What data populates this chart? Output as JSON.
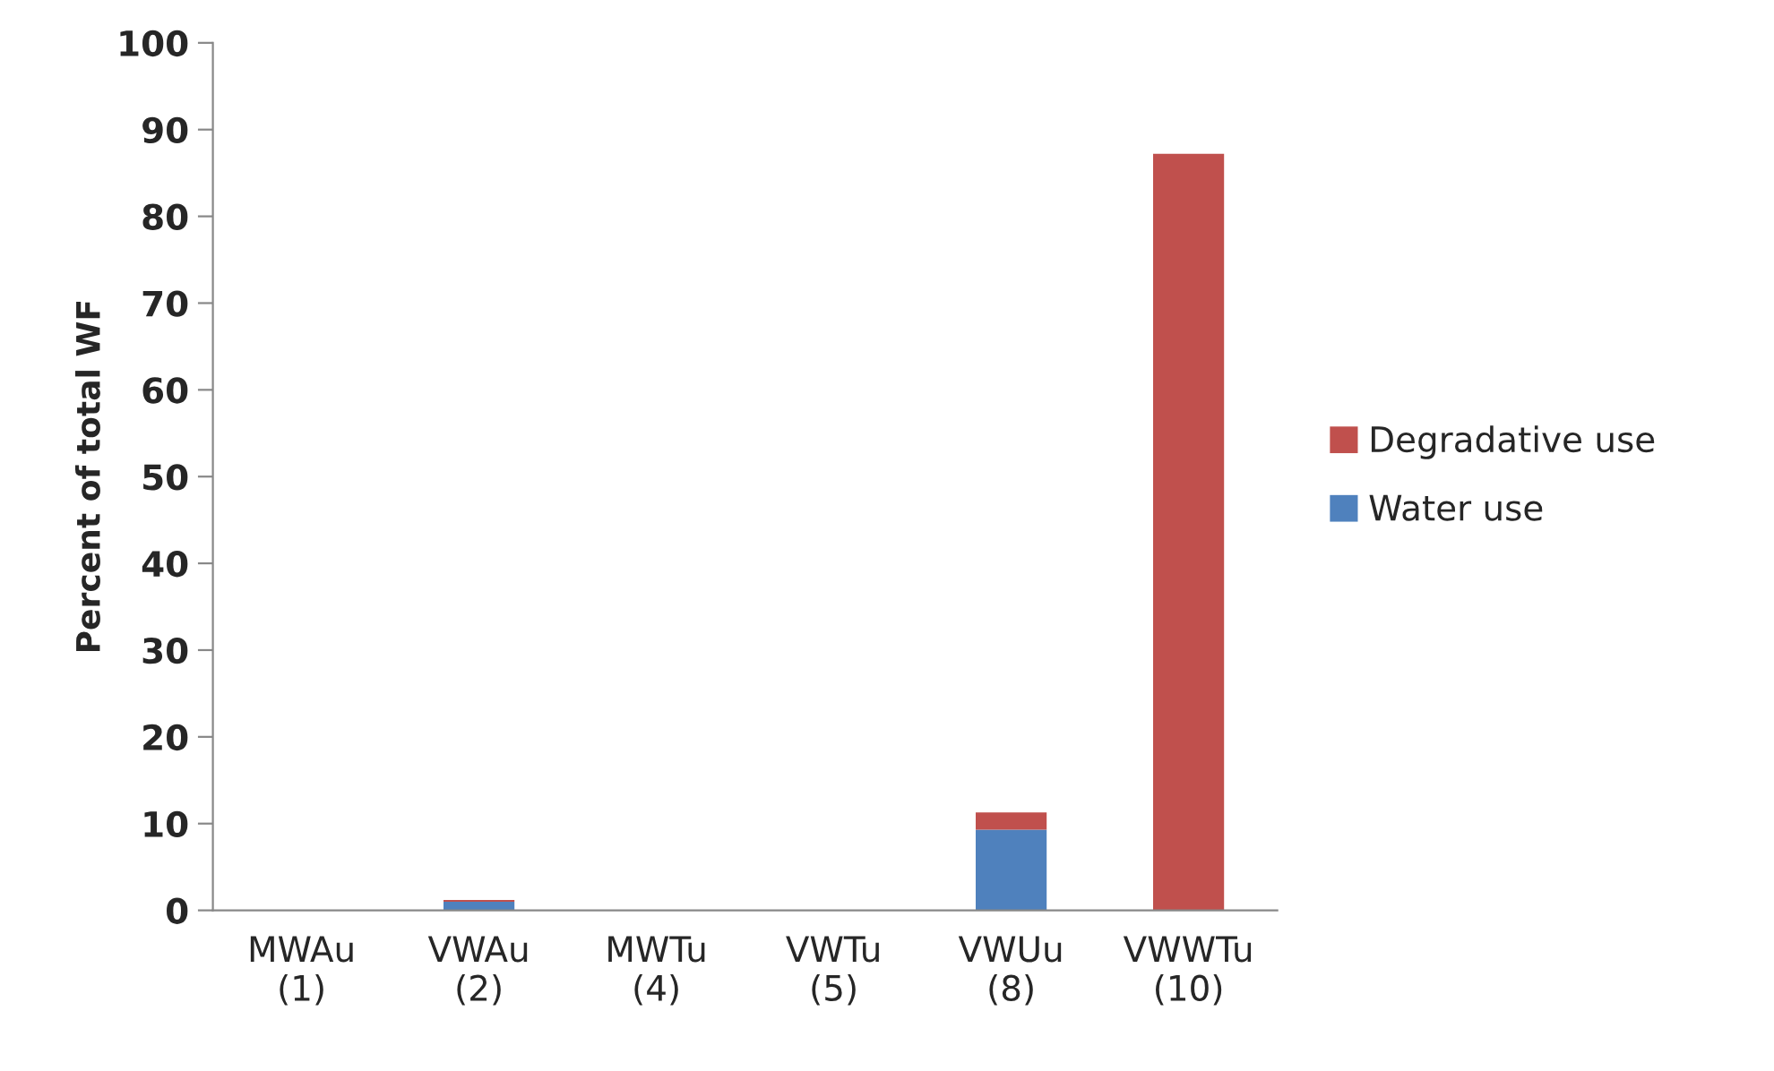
{
  "chart_data": {
    "type": "bar",
    "stacked": true,
    "ylabel": "Percent of total WF",
    "categories": [
      "MWAu\n(1)",
      "VWAu\n(2)",
      "MWTu\n(4)",
      "VWTu\n(5)",
      "VWUu\n(8)",
      "VWWTu\n(10)"
    ],
    "series": [
      {
        "name": "Water use",
        "color": "#4f81bd",
        "values": [
          0,
          1.0,
          0,
          0,
          9.3,
          0
        ]
      },
      {
        "name": "Degradative use",
        "color": "#c0504d",
        "values": [
          0,
          0.2,
          0,
          0,
          2.0,
          87.2
        ]
      }
    ],
    "ylim": [
      0,
      100
    ],
    "yticks": [
      0,
      10,
      20,
      30,
      40,
      50,
      60,
      70,
      80,
      90,
      100
    ],
    "grid": false,
    "legend": "right"
  }
}
